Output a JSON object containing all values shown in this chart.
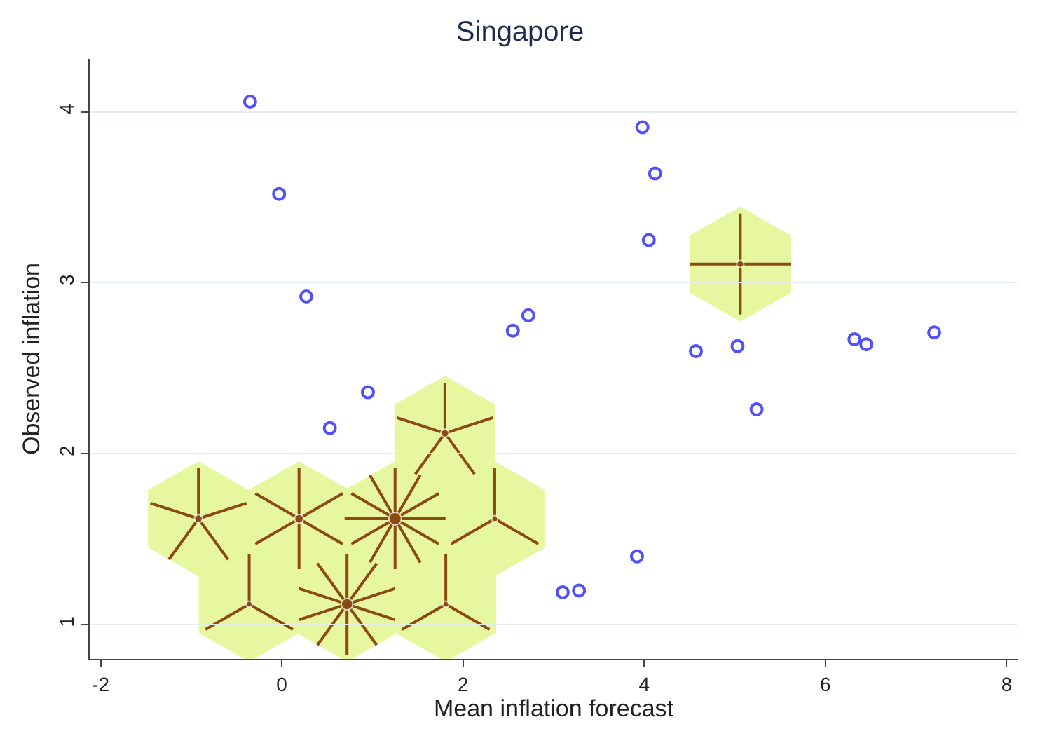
{
  "chart_data": {
    "type": "scatter",
    "title": "Singapore",
    "xlabel": "Mean inflation forecast",
    "ylabel": "Observed inflation",
    "xlim": [
      -2.12,
      8.12
    ],
    "xticks": [
      -2,
      0,
      2,
      4,
      6,
      8
    ],
    "ylim": [
      0.8,
      4.31
    ],
    "yticks": [
      1,
      2,
      3,
      4
    ],
    "grid": "y",
    "series": [
      {
        "marker": "circle",
        "color": "#5050ff",
        "x": [
          -0.35,
          -0.03,
          0.27,
          0.53,
          0.95,
          2.55,
          2.72,
          3.98,
          4.12,
          4.05,
          4.57,
          5.03,
          5.24,
          6.32,
          6.45,
          7.2,
          3.1,
          3.28,
          3.92
        ],
        "values": [
          4.06,
          3.52,
          2.92,
          2.15,
          2.36,
          2.72,
          2.81,
          3.91,
          3.64,
          3.25,
          2.6,
          2.63,
          2.26,
          2.67,
          2.64,
          2.71,
          1.19,
          1.2,
          1.4
        ]
      },
      {
        "type": "bubble",
        "marker": "circle",
        "color": "#8b4a10",
        "x": [
          -0.92,
          0.19,
          1.25,
          2.35,
          1.8,
          -0.36,
          0.72,
          1.81,
          5.06
        ],
        "values": [
          1.62,
          1.62,
          1.62,
          1.62,
          2.12,
          1.12,
          1.12,
          1.12,
          3.11
        ],
        "sizes": [
          0.4167,
          0.5,
          1,
          0.25,
          0.4167,
          0.25,
          0.8333,
          0.25,
          0.3333
        ]
      }
    ]
  }
}
